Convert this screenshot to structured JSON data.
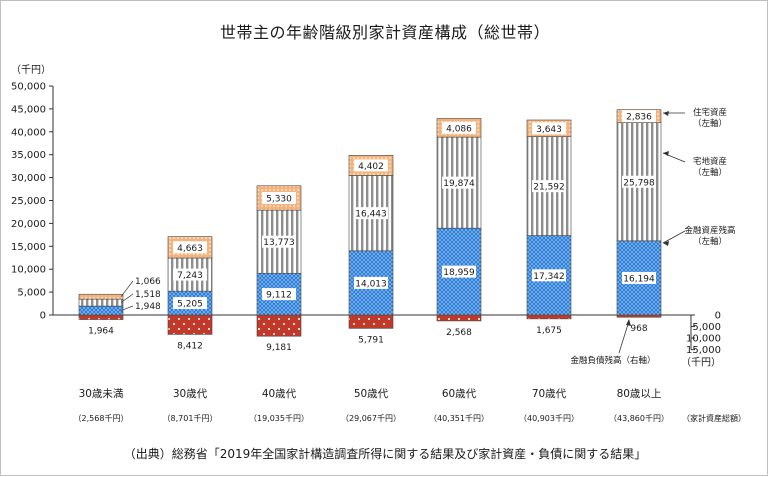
{
  "title": "世帯主の年齢階級別家計資産構成（総世帯）",
  "source": "（出典）総務省「2019年全国家計構造調査所得に関する結果及び家計資産・負債に関する結果」",
  "chart_data": {
    "type": "bar",
    "stacked": true,
    "unit_label": "（千円）",
    "left_axis": {
      "min": 0,
      "max": 50000,
      "ticks": [
        "0",
        "5,000",
        "10,000",
        "15,000",
        "20,000",
        "25,000",
        "30,000",
        "35,000",
        "40,000",
        "45,000",
        "50,000"
      ]
    },
    "right_axis": {
      "ticks": [
        "0",
        "5,000",
        "10,000",
        "15,000"
      ],
      "unit_label": "（千円）"
    },
    "categories": [
      "30歳未満",
      "30歳代",
      "40歳代",
      "50歳代",
      "60歳代",
      "70歳代",
      "80歳以上"
    ],
    "totals": [
      "（2,568千円）",
      "（8,701千円）",
      "（19,035千円）",
      "（29,067千円）",
      "（40,351千円）",
      "（40,903千円）",
      "（43,860千円）"
    ],
    "totals_label": "（家計資産総額）",
    "series": [
      {
        "name": "金融資産残高（左軸）",
        "color": "#2f7fd6",
        "values": [
          1948,
          5205,
          9112,
          14013,
          18959,
          17342,
          16194
        ],
        "labels": [
          "1,948",
          "5,205",
          "9,112",
          "14,013",
          "18,959",
          "17,342",
          "16,194"
        ]
      },
      {
        "name": "宅地資産（左軸）",
        "color": "#9a9a9a",
        "values": [
          1518,
          7243,
          13773,
          16443,
          19874,
          21592,
          25798
        ],
        "labels": [
          "1,518",
          "7,243",
          "13,773",
          "16,443",
          "19,874",
          "21,592",
          "25,798"
        ]
      },
      {
        "name": "住宅資産（左軸）",
        "color": "#f3b27a",
        "values": [
          1066,
          4663,
          5330,
          4402,
          4086,
          3643,
          2836
        ],
        "labels": [
          "1,066",
          "4,663",
          "5,330",
          "4,402",
          "4,086",
          "3,643",
          "2,836"
        ]
      }
    ],
    "debt": {
      "name": "金融負債残高（右軸）",
      "color": "#c0392b",
      "values": [
        1964,
        8412,
        9181,
        5791,
        2568,
        1675,
        968
      ],
      "labels": [
        "1,964",
        "8,412",
        "9,181",
        "5,791",
        "2,568",
        "1,675",
        "968"
      ]
    },
    "annotations": {
      "housing": "住宅資産",
      "housing_axis": "（左軸）",
      "land": "宅地資産",
      "land_axis": "（左軸）",
      "financial": "金融資産残高",
      "financial_axis": "（左軸）",
      "debt": "金融負債残高（右軸）"
    }
  }
}
